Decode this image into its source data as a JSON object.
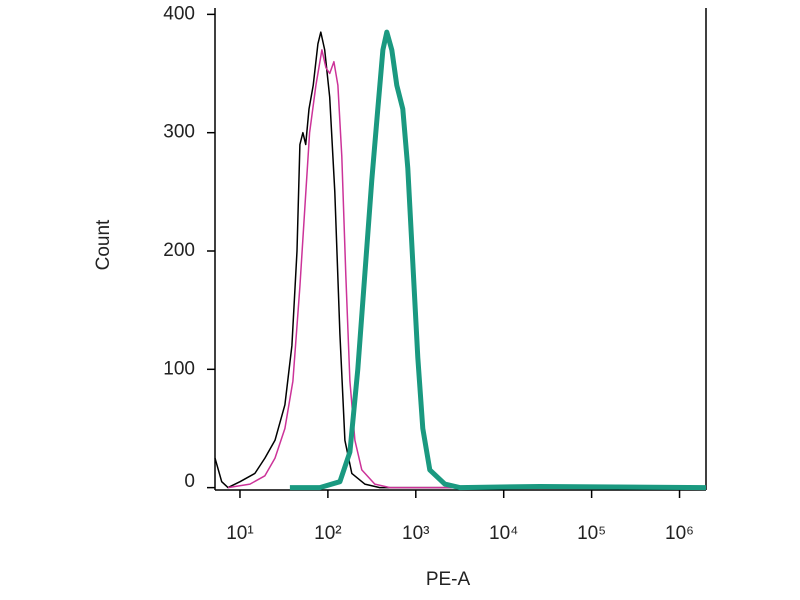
{
  "chart_data": {
    "type": "line",
    "xlabel": "PE-A",
    "ylabel": "Count",
    "xscale": "log",
    "xlim": [
      5.2,
      2000000
    ],
    "ylim": [
      -2,
      402
    ],
    "xticks": [
      {
        "value": 10,
        "label": "10¹"
      },
      {
        "value": 100,
        "label": "10²"
      },
      {
        "value": 1000,
        "label": "10³"
      },
      {
        "value": 10000,
        "label": "10⁴"
      },
      {
        "value": 100000,
        "label": "10⁵"
      },
      {
        "value": 1000000,
        "label": "10⁶"
      }
    ],
    "yticks": [
      0,
      100,
      200,
      300,
      400
    ],
    "series": [
      {
        "color": "#000000",
        "width": 1.5,
        "x": [
          5.2,
          6.2,
          7.3,
          10,
          14.8,
          19.2,
          25,
          32.4,
          39,
          44.5,
          48,
          52,
          56,
          61,
          68,
          77,
          83,
          92,
          105,
          120,
          137,
          156,
          187,
          263,
          390,
          2000000
        ],
        "values": [
          25,
          5,
          0,
          5,
          12,
          25,
          40,
          70,
          120,
          200,
          290,
          300,
          290,
          320,
          340,
          375,
          385,
          370,
          330,
          250,
          130,
          40,
          12,
          3,
          0,
          0
        ]
      },
      {
        "color": "#cc3399",
        "width": 1.5,
        "x": [
          7.3,
          13,
          19.2,
          25,
          32.4,
          40,
          48,
          55,
          62,
          73,
          85.5,
          95,
          105,
          117,
          130,
          144,
          160,
          178,
          203,
          243,
          342,
          507,
          2000000
        ],
        "values": [
          0,
          3,
          10,
          25,
          50,
          90,
          170,
          240,
          300,
          340,
          370,
          355,
          350,
          360,
          340,
          280,
          180,
          90,
          40,
          15,
          3,
          0,
          0
        ]
      },
      {
        "color": "#1a9980",
        "width": 5,
        "x": [
          37,
          81,
          137,
          178,
          219,
          263,
          316,
          370,
          422,
          468,
          534,
          608,
          711,
          811,
          925,
          1054,
          1202,
          1443,
          2137,
          3162,
          25700,
          2000000
        ],
        "values": [
          0,
          0,
          5,
          30,
          100,
          180,
          260,
          320,
          370,
          385,
          370,
          340,
          320,
          270,
          190,
          110,
          50,
          15,
          3,
          0,
          1,
          0
        ]
      }
    ]
  }
}
